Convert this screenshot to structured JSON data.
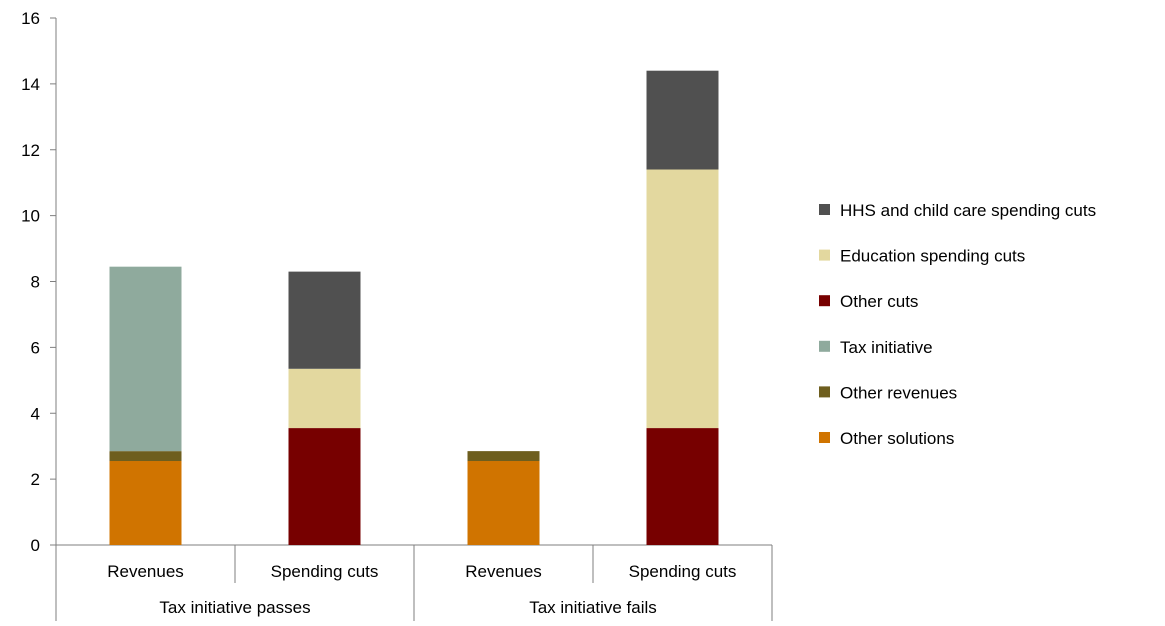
{
  "chart_data": {
    "type": "bar",
    "stacked": true,
    "groups": [
      {
        "label": "Tax initiative passes",
        "categories": [
          "Revenues",
          "Spending cuts"
        ]
      },
      {
        "label": "Tax initiative fails",
        "categories": [
          "Revenues",
          "Spending cuts"
        ]
      }
    ],
    "categories": [
      "Revenues",
      "Spending cuts",
      "Revenues",
      "Spending cuts"
    ],
    "series": [
      {
        "name": "Other solutions",
        "color": "#D07400",
        "values": [
          2.55,
          0,
          2.55,
          0
        ]
      },
      {
        "name": "Other revenues",
        "color": "#6E5E1E",
        "values": [
          0.3,
          0,
          0.3,
          0
        ]
      },
      {
        "name": "Tax initiative",
        "color": "#8FAA9D",
        "values": [
          5.6,
          0,
          0,
          0
        ]
      },
      {
        "name": "Other cuts",
        "color": "#770000",
        "values": [
          0,
          3.55,
          0,
          3.55
        ]
      },
      {
        "name": "Education spending cuts",
        "color": "#E3D89F",
        "values": [
          0,
          1.8,
          0,
          7.85
        ]
      },
      {
        "name": "HHS and child care spending cuts",
        "color": "#505050",
        "values": [
          0,
          2.95,
          0,
          3.0
        ]
      }
    ],
    "y_ticks": [
      "0",
      "2",
      "4",
      "6",
      "8",
      "10",
      "12",
      "14",
      "16"
    ],
    "ylim": [
      0,
      16
    ],
    "grid": false,
    "legend_position": "right"
  }
}
